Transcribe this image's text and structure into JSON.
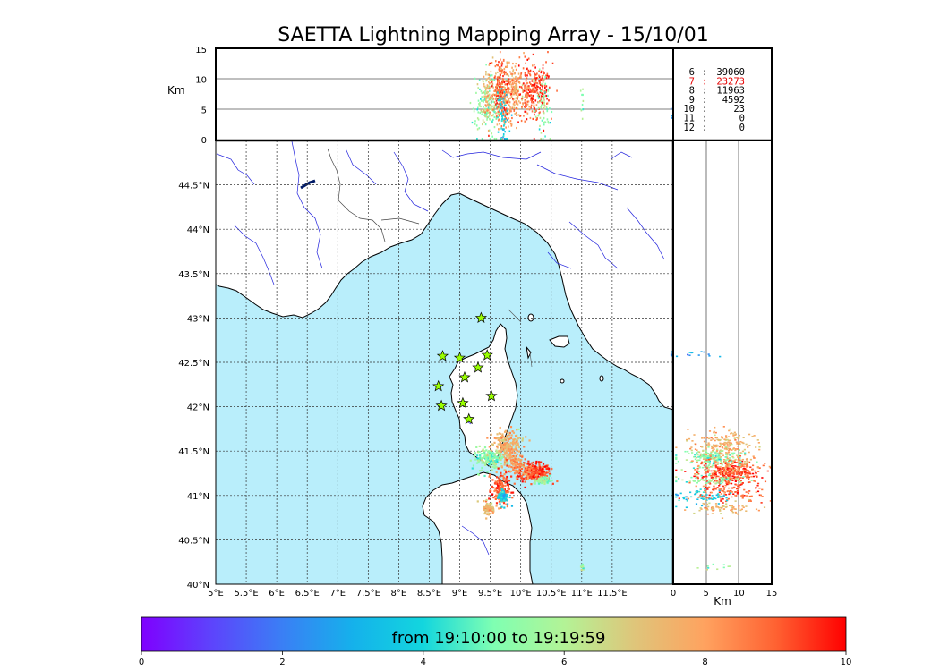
{
  "chart_data": {
    "type": "scatter",
    "title": "SAETTA Lightning Mapping Array - 15/10/01",
    "map": {
      "xlim": [
        5,
        12.5
      ],
      "ylim": [
        40,
        45
      ],
      "x_ticks": [
        "5°E",
        "5.5°E",
        "6°E",
        "6.5°E",
        "7°E",
        "7.5°E",
        "8°E",
        "8.5°E",
        "9°E",
        "9.5°E",
        "10°E",
        "10.5°E",
        "11°E",
        "11.5°E"
      ],
      "y_ticks": [
        "40°N",
        "40.5°N",
        "41°N",
        "41.5°N",
        "42°N",
        "42.5°N",
        "43°N",
        "43.5°N",
        "44°N",
        "44.5°N"
      ],
      "grid": true,
      "stations": [
        {
          "lon": 9.35,
          "lat": 43.0
        },
        {
          "lon": 8.72,
          "lat": 42.57
        },
        {
          "lon": 9.0,
          "lat": 42.55
        },
        {
          "lon": 9.45,
          "lat": 42.58
        },
        {
          "lon": 9.3,
          "lat": 42.44
        },
        {
          "lon": 9.08,
          "lat": 42.33
        },
        {
          "lon": 8.65,
          "lat": 42.23
        },
        {
          "lon": 9.52,
          "lat": 42.12
        },
        {
          "lon": 9.05,
          "lat": 42.04
        },
        {
          "lon": 8.7,
          "lat": 42.01
        },
        {
          "lon": 9.15,
          "lat": 41.86
        }
      ]
    },
    "altitude_axis": {
      "label": "Km",
      "ticks": [
        "0",
        "5",
        "10",
        "15"
      ],
      "range": [
        0,
        15
      ]
    },
    "station_counts": [
      {
        "stations": "6",
        "count": "39060",
        "color": "#000000"
      },
      {
        "stations": "7",
        "count": "23273",
        "color": "#e60000"
      },
      {
        "stations": "8",
        "count": "11963",
        "color": "#000000"
      },
      {
        "stations": "9",
        "count": "4592",
        "color": "#000000"
      },
      {
        "stations": "10",
        "count": "23",
        "color": "#000000"
      },
      {
        "stations": "11",
        "count": "0",
        "color": "#000000"
      },
      {
        "stations": "12",
        "count": "0",
        "color": "#000000"
      }
    ],
    "clusters": [
      {
        "lon": 10.2,
        "lat": 41.27,
        "alt": 8.5,
        "t": 9.2,
        "n": 260,
        "slon": 0.14,
        "slat": 0.05
      },
      {
        "lon": 9.75,
        "lat": 41.55,
        "alt": 7.3,
        "t": 7.6,
        "n": 230,
        "slon": 0.12,
        "slat": 0.1
      },
      {
        "lon": 9.45,
        "lat": 41.42,
        "alt": 6.0,
        "t": 5.3,
        "n": 170,
        "slon": 0.12,
        "slat": 0.06
      },
      {
        "lon": 9.65,
        "lat": 41.08,
        "alt": 8.0,
        "t": 8.9,
        "n": 180,
        "slon": 0.07,
        "slat": 0.09
      },
      {
        "lon": 9.7,
        "lat": 41.0,
        "alt": 4.5,
        "t": 3.6,
        "n": 60,
        "slon": 0.05,
        "slat": 0.05
      },
      {
        "lon": 9.45,
        "lat": 40.86,
        "alt": 7.2,
        "t": 7.6,
        "n": 70,
        "slon": 0.05,
        "slat": 0.04
      },
      {
        "lon": 10.35,
        "lat": 41.18,
        "alt": 5.5,
        "t": 5.5,
        "n": 60,
        "slon": 0.07,
        "slat": 0.02
      },
      {
        "lon": 9.9,
        "lat": 41.35,
        "alt": 7.8,
        "t": 8.1,
        "n": 80,
        "slon": 0.09,
        "slat": 0.06
      },
      {
        "lon": 11.0,
        "lat": 40.2,
        "alt": 6.0,
        "t": 5.7,
        "n": 10,
        "slon": 0.02,
        "slat": 0.03
      },
      {
        "lon": 12.5,
        "lat": 42.6,
        "alt": 4.0,
        "t": 2.8,
        "n": 12,
        "slon": 0.02,
        "slat": 0.02
      }
    ],
    "colorbar": {
      "label": "from 19:10:00 to 19:19:59",
      "ticks": [
        "0",
        "2",
        "4",
        "6",
        "8",
        "10"
      ],
      "range": [
        0,
        10
      ]
    }
  },
  "colors": {
    "sea": "#b9eefb",
    "land": "#ffffff",
    "rivers": "#2222dd",
    "stations": "#99ff00"
  }
}
